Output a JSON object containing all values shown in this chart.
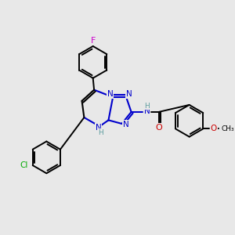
{
  "bg_color": "#e8e8e8",
  "bond_color": "#0000cc",
  "black_bond": "#000000",
  "atom_colors": {
    "N": "#0000cc",
    "O": "#cc0000",
    "Cl": "#00aa00",
    "F": "#cc00cc",
    "H": "#5f9ea0",
    "C": "#000000"
  }
}
